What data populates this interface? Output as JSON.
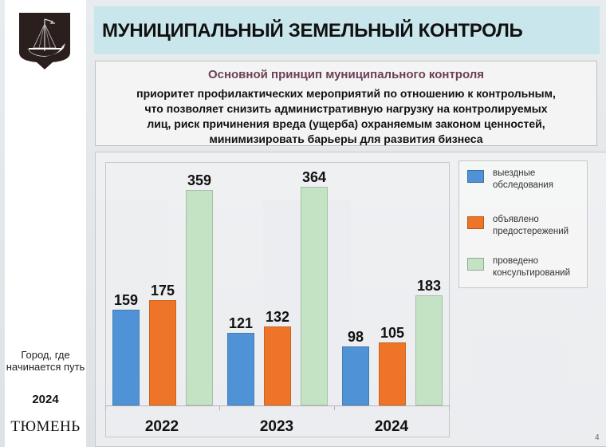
{
  "slide": {
    "title": "МУНИЦИПАЛЬНЫЙ ЗЕМЕЛЬНЫЙ КОНТРОЛЬ",
    "page_number": "4"
  },
  "sidebar": {
    "emblem": "tyumen-coat-of-arms-ship",
    "slogan": "Город, где начинается путь",
    "year": "2024",
    "city": "ТЮМЕНЬ"
  },
  "principle": {
    "heading": "Основной принцип муниципального контроля",
    "lines": [
      "приоритет профилактических мероприятий по отношению к контрольным,",
      "что позволяет снизить административную нагрузку на контролируемых",
      "лиц, риск причинения вреда (ущерба) охраняемым законом ценностей,",
      "минимизировать барьеры для развития бизнеса"
    ]
  },
  "colors": {
    "blue": "#4f93d6",
    "orange": "#ee7527",
    "green": "#c4e2c4",
    "title_bg": "#c8e6eb",
    "heading": "#6b3f55"
  },
  "chart_data": {
    "type": "bar",
    "title": "",
    "xlabel": "",
    "ylabel": "",
    "categories": [
      "2022",
      "2023",
      "2024"
    ],
    "series": [
      {
        "name": "выездные обследования",
        "color": "#4f93d6",
        "values": [
          159,
          121,
          98
        ]
      },
      {
        "name": "объявлено предостережений",
        "color": "#ee7527",
        "values": [
          175,
          132,
          105
        ]
      },
      {
        "name": "проведено консультирований",
        "color": "#c4e2c4",
        "values": [
          359,
          364,
          183
        ]
      }
    ],
    "data_labels": true,
    "grid": false,
    "y_axis_visible": false,
    "legend_position": "right",
    "ylim": [
      0,
      400
    ]
  },
  "legend": {
    "items": [
      {
        "label_1": "выездные",
        "label_2": "обследования"
      },
      {
        "label_1": "объявлено",
        "label_2": "предостережений"
      },
      {
        "label_1": "проведено",
        "label_2": "консультирований"
      }
    ]
  }
}
